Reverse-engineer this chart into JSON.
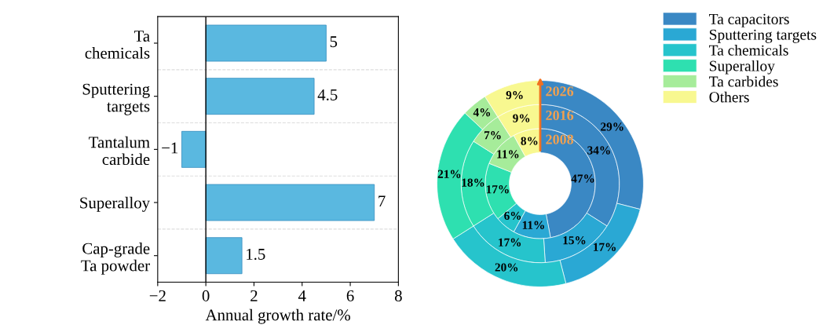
{
  "chart_data": [
    {
      "type": "bar",
      "orientation": "horizontal",
      "xlabel": "Annual growth rate/%",
      "categories": [
        "Ta\nchemicals",
        "Sputtering\ntargets",
        "Tantalum\ncarbide",
        "Superalloy",
        "Cap-grade\nTa powder"
      ],
      "values": [
        5,
        4.5,
        -1,
        7,
        1.5
      ],
      "color": "#5ab8e0",
      "value_labels": [
        "5",
        "4.5",
        "−1",
        "7",
        "1.5"
      ],
      "xlim": [
        -2,
        8
      ],
      "xticks": [
        {
          "value": -2,
          "label": "−2"
        },
        0,
        2,
        4,
        6,
        8
      ],
      "ref_lines": [
        {
          "axis": "x",
          "value": 0,
          "color": "#000000"
        }
      ],
      "grid": "y"
    },
    {
      "type": "donut",
      "categories": [
        "Ta capacitors",
        "Sputtering targets",
        "Ta chemicals",
        "Superalloy",
        "Ta carbides",
        "Others"
      ],
      "colors": [
        "#3a88c4",
        "#2aa8d4",
        "#26c4cc",
        "#2ee0b0",
        "#a6ec9a",
        "#f8f890"
      ],
      "series": [
        {
          "name": "2008",
          "values": [
            47,
            11,
            6,
            17,
            11,
            8
          ],
          "value_labels": [
            "47%",
            "11%",
            "6%",
            "17%",
            "11%",
            "8%"
          ]
        },
        {
          "name": "2016",
          "values": [
            34,
            15,
            17,
            18,
            7,
            9
          ],
          "value_labels": [
            "34%",
            "15%",
            "17%",
            "18%",
            "7%",
            "9%"
          ]
        },
        {
          "name": "2026",
          "values": [
            29,
            17,
            20,
            21,
            4,
            9
          ],
          "value_labels": [
            "29%",
            "17%",
            "20%",
            "21%",
            "4%",
            "9%"
          ]
        }
      ],
      "legend": "top right"
    }
  ]
}
